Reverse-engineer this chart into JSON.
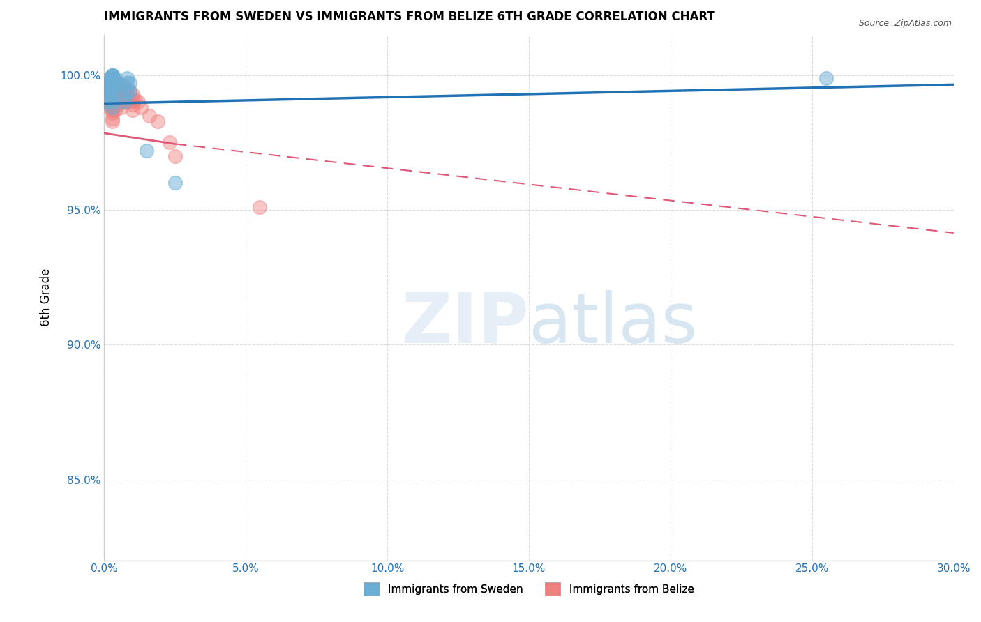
{
  "title": "IMMIGRANTS FROM SWEDEN VS IMMIGRANTS FROM BELIZE 6TH GRADE CORRELATION CHART",
  "source": "Source: ZipAtlas.com",
  "ylabel": "6th Grade",
  "xlim": [
    0.0,
    0.3
  ],
  "ylim": [
    0.82,
    1.015
  ],
  "xticks": [
    0.0,
    0.05,
    0.1,
    0.15,
    0.2,
    0.25,
    0.3
  ],
  "xticklabels": [
    "0.0%",
    "5.0%",
    "10.0%",
    "15.0%",
    "20.0%",
    "25.0%",
    "30.0%"
  ],
  "yticks": [
    0.85,
    0.9,
    0.95,
    1.0
  ],
  "yticklabels": [
    "85.0%",
    "90.0%",
    "95.0%",
    "100.0%"
  ],
  "sweden_color": "#6aaed6",
  "belize_color": "#f08080",
  "trendline_sweden_color": "#2171b5",
  "trendline_belize_color": "#e05878",
  "sweden_x": [
    0.001,
    0.001,
    0.001,
    0.002,
    0.002,
    0.002,
    0.002,
    0.002,
    0.003,
    0.003,
    0.003,
    0.003,
    0.003,
    0.003,
    0.003,
    0.003,
    0.003,
    0.003,
    0.003,
    0.004,
    0.004,
    0.004,
    0.006,
    0.007,
    0.007,
    0.008,
    0.008,
    0.008,
    0.009,
    0.009,
    0.015,
    0.025,
    0.255
  ],
  "sweden_y": [
    0.99,
    0.995,
    0.997,
    0.991,
    0.993,
    0.995,
    0.997,
    0.999,
    0.988,
    0.99,
    0.992,
    0.994,
    0.996,
    0.997,
    0.998,
    0.999,
    1.0,
    1.0,
    1.0,
    0.996,
    0.997,
    0.999,
    0.996,
    0.99,
    0.992,
    0.994,
    0.997,
    0.999,
    0.994,
    0.997,
    0.972,
    0.96,
    0.999
  ],
  "belize_x": [
    0.001,
    0.001,
    0.001,
    0.001,
    0.001,
    0.001,
    0.002,
    0.002,
    0.002,
    0.002,
    0.002,
    0.002,
    0.002,
    0.002,
    0.002,
    0.003,
    0.003,
    0.003,
    0.003,
    0.003,
    0.003,
    0.003,
    0.003,
    0.003,
    0.003,
    0.003,
    0.003,
    0.003,
    0.004,
    0.004,
    0.004,
    0.004,
    0.004,
    0.004,
    0.004,
    0.005,
    0.005,
    0.005,
    0.005,
    0.005,
    0.006,
    0.006,
    0.006,
    0.006,
    0.006,
    0.007,
    0.007,
    0.007,
    0.007,
    0.008,
    0.008,
    0.008,
    0.009,
    0.009,
    0.009,
    0.01,
    0.01,
    0.01,
    0.01,
    0.011,
    0.012,
    0.013,
    0.016,
    0.019,
    0.023,
    0.025,
    0.055
  ],
  "belize_y": [
    0.996,
    0.995,
    0.994,
    0.993,
    0.991,
    0.99,
    0.999,
    0.997,
    0.996,
    0.994,
    0.993,
    0.991,
    0.99,
    0.989,
    0.988,
    0.999,
    0.998,
    0.997,
    0.995,
    0.994,
    0.993,
    0.992,
    0.99,
    0.989,
    0.987,
    0.986,
    0.984,
    0.983,
    0.998,
    0.996,
    0.994,
    0.992,
    0.991,
    0.989,
    0.987,
    0.997,
    0.995,
    0.993,
    0.991,
    0.989,
    0.996,
    0.994,
    0.992,
    0.99,
    0.988,
    0.996,
    0.994,
    0.992,
    0.99,
    0.994,
    0.992,
    0.99,
    0.994,
    0.992,
    0.99,
    0.993,
    0.991,
    0.989,
    0.987,
    0.991,
    0.99,
    0.988,
    0.985,
    0.983,
    0.975,
    0.97,
    0.951
  ],
  "trendline_sweden_x0": 0.0,
  "trendline_sweden_x1": 0.3,
  "trendline_sweden_y0": 0.9895,
  "trendline_sweden_y1": 0.9965,
  "trendline_belize_solid_x0": 0.0,
  "trendline_belize_solid_x1": 0.025,
  "trendline_belize_dashed_x1": 0.3,
  "trendline_belize_y0": 0.9785,
  "trendline_belize_y1_solid": 0.9745,
  "trendline_belize_y1_dashed": 0.9415
}
